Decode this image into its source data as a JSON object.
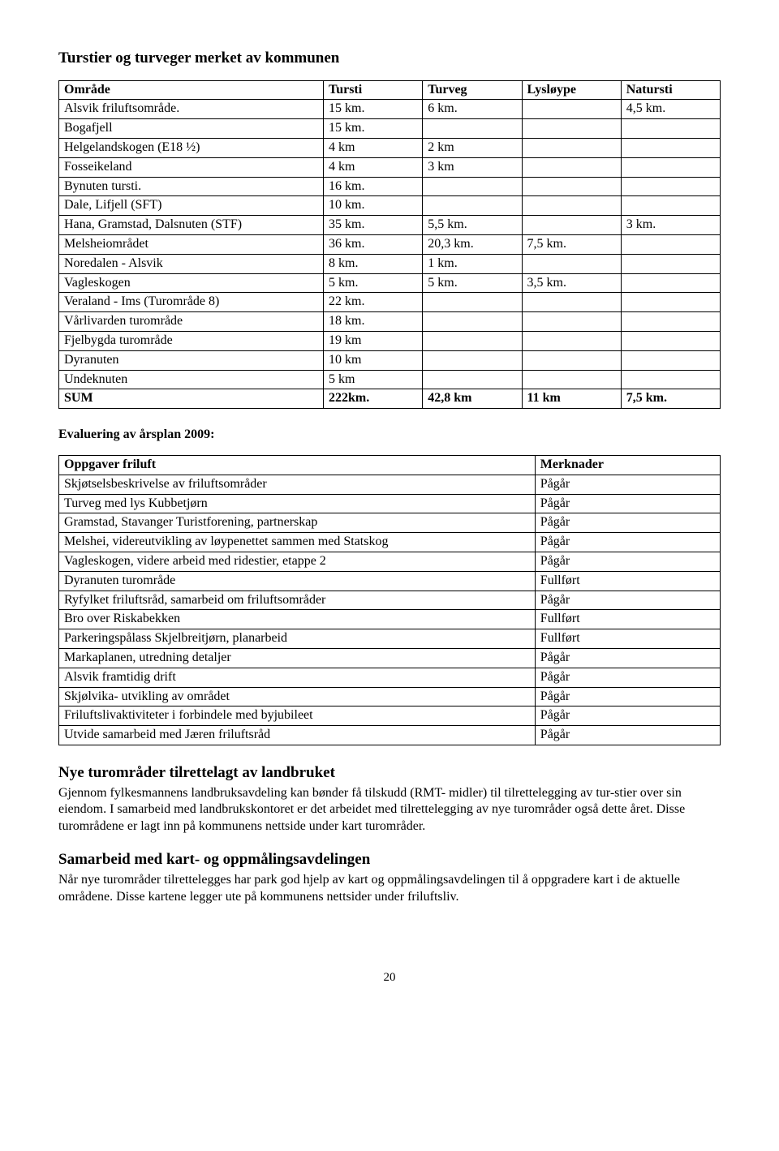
{
  "section1_title": "Turstier og turveger merket  av  kommunen",
  "table1": {
    "headers": [
      "Område",
      "Tursti",
      "Turveg",
      "Lysløype",
      "Natursti"
    ],
    "rows": [
      [
        "Alsvik friluftsområde.",
        "15 km.",
        "6 km.",
        "",
        "4,5 km."
      ],
      [
        "Bogafjell",
        "15 km.",
        "",
        "",
        ""
      ],
      [
        "Helgelandskogen (E18 ½)",
        "4 km",
        "2 km",
        "",
        ""
      ],
      [
        "Fosseikeland",
        "4 km",
        "3 km",
        "",
        ""
      ],
      [
        "Bynuten tursti.",
        "16 km.",
        "",
        "",
        ""
      ],
      [
        "Dale, Lifjell  (SFT)",
        "10 km.",
        "",
        "",
        ""
      ],
      [
        "Hana, Gramstad, Dalsnuten   (STF)",
        "35 km.",
        "5,5  km.",
        "",
        "3 km."
      ],
      [
        "Melsheiområdet",
        "36 km.",
        "20,3 km.",
        "7,5 km.",
        ""
      ],
      [
        "Noredalen - Alsvik",
        "8 km.",
        "1 km.",
        "",
        ""
      ],
      [
        "Vagleskogen",
        "5 km.",
        "5 km.",
        "3,5 km.",
        ""
      ],
      [
        "Veraland - Ims (Turområde 8)",
        "22 km.",
        "",
        "",
        ""
      ],
      [
        "Vårlivarden turområde",
        "18 km.",
        "",
        "",
        ""
      ],
      [
        "Fjelbygda turområde",
        "19 km",
        "",
        "",
        ""
      ],
      [
        "Dyranuten",
        "10 km",
        "",
        "",
        ""
      ],
      [
        "Undeknuten",
        "5 km",
        "",
        "",
        ""
      ]
    ],
    "sum_row": [
      "SUM",
      "222km.",
      "42,8 km",
      "11 km",
      "7,5 km."
    ]
  },
  "eval_title": "Evaluering av årsplan 2009:",
  "table2": {
    "headers": [
      "Oppgaver friluft",
      "Merknader"
    ],
    "rows": [
      [
        "Skjøtselsbeskrivelse av friluftsområder",
        "Pågår"
      ],
      [
        "Turveg med lys Kubbetjørn",
        "Pågår"
      ],
      [
        "Gramstad, Stavanger Turistforening, partnerskap",
        "Pågår"
      ],
      [
        "Melshei, videreutvikling av løypenettet sammen med Statskog",
        "Pågår"
      ],
      [
        "Vagleskogen, videre arbeid med ridestier, etappe 2",
        "Pågår"
      ],
      [
        "Dyranuten turområde",
        "Fullført"
      ],
      [
        "Ryfylket friluftsråd, samarbeid om friluftsområder",
        "Pågår"
      ],
      [
        "Bro over Riskabekken",
        "Fullført"
      ],
      [
        "Parkeringspålass  Skjelbreitjørn, planarbeid",
        "Fullført"
      ],
      [
        "Markaplanen, utredning detaljer",
        "Pågår"
      ],
      [
        "Alsvik  framtidig drift",
        "Pågår"
      ],
      [
        "Skjølvika- utvikling av området",
        "Pågår"
      ],
      [
        "Friluftslivaktiviteter i forbindele med byjubileet",
        "Pågår"
      ],
      [
        "Utvide samarbeid med Jæren friluftsråd",
        "Pågår"
      ]
    ]
  },
  "section3_title": "Nye turområder tilrettelagt av landbruket",
  "section3_body": "Gjennom fylkesmannens landbruksavdeling kan bønder få tilskudd (RMT- midler) til tilrettelegging av tur-stier over sin eiendom. I samarbeid med landbrukskontoret er det arbeidet med tilrettelegging av nye turområder også dette året. Disse turområdene er lagt inn på kommunens nettside under kart turområder.",
  "section4_title": "Samarbeid med kart- og oppmålingsavdelingen",
  "section4_body": "Når nye turområder tilrettelegges har park god hjelp av kart og oppmålingsavdelingen til å oppgradere kart i de aktuelle områdene. Disse kartene legger ute på kommunens nettsider under friluftsliv.",
  "page_number": "20"
}
